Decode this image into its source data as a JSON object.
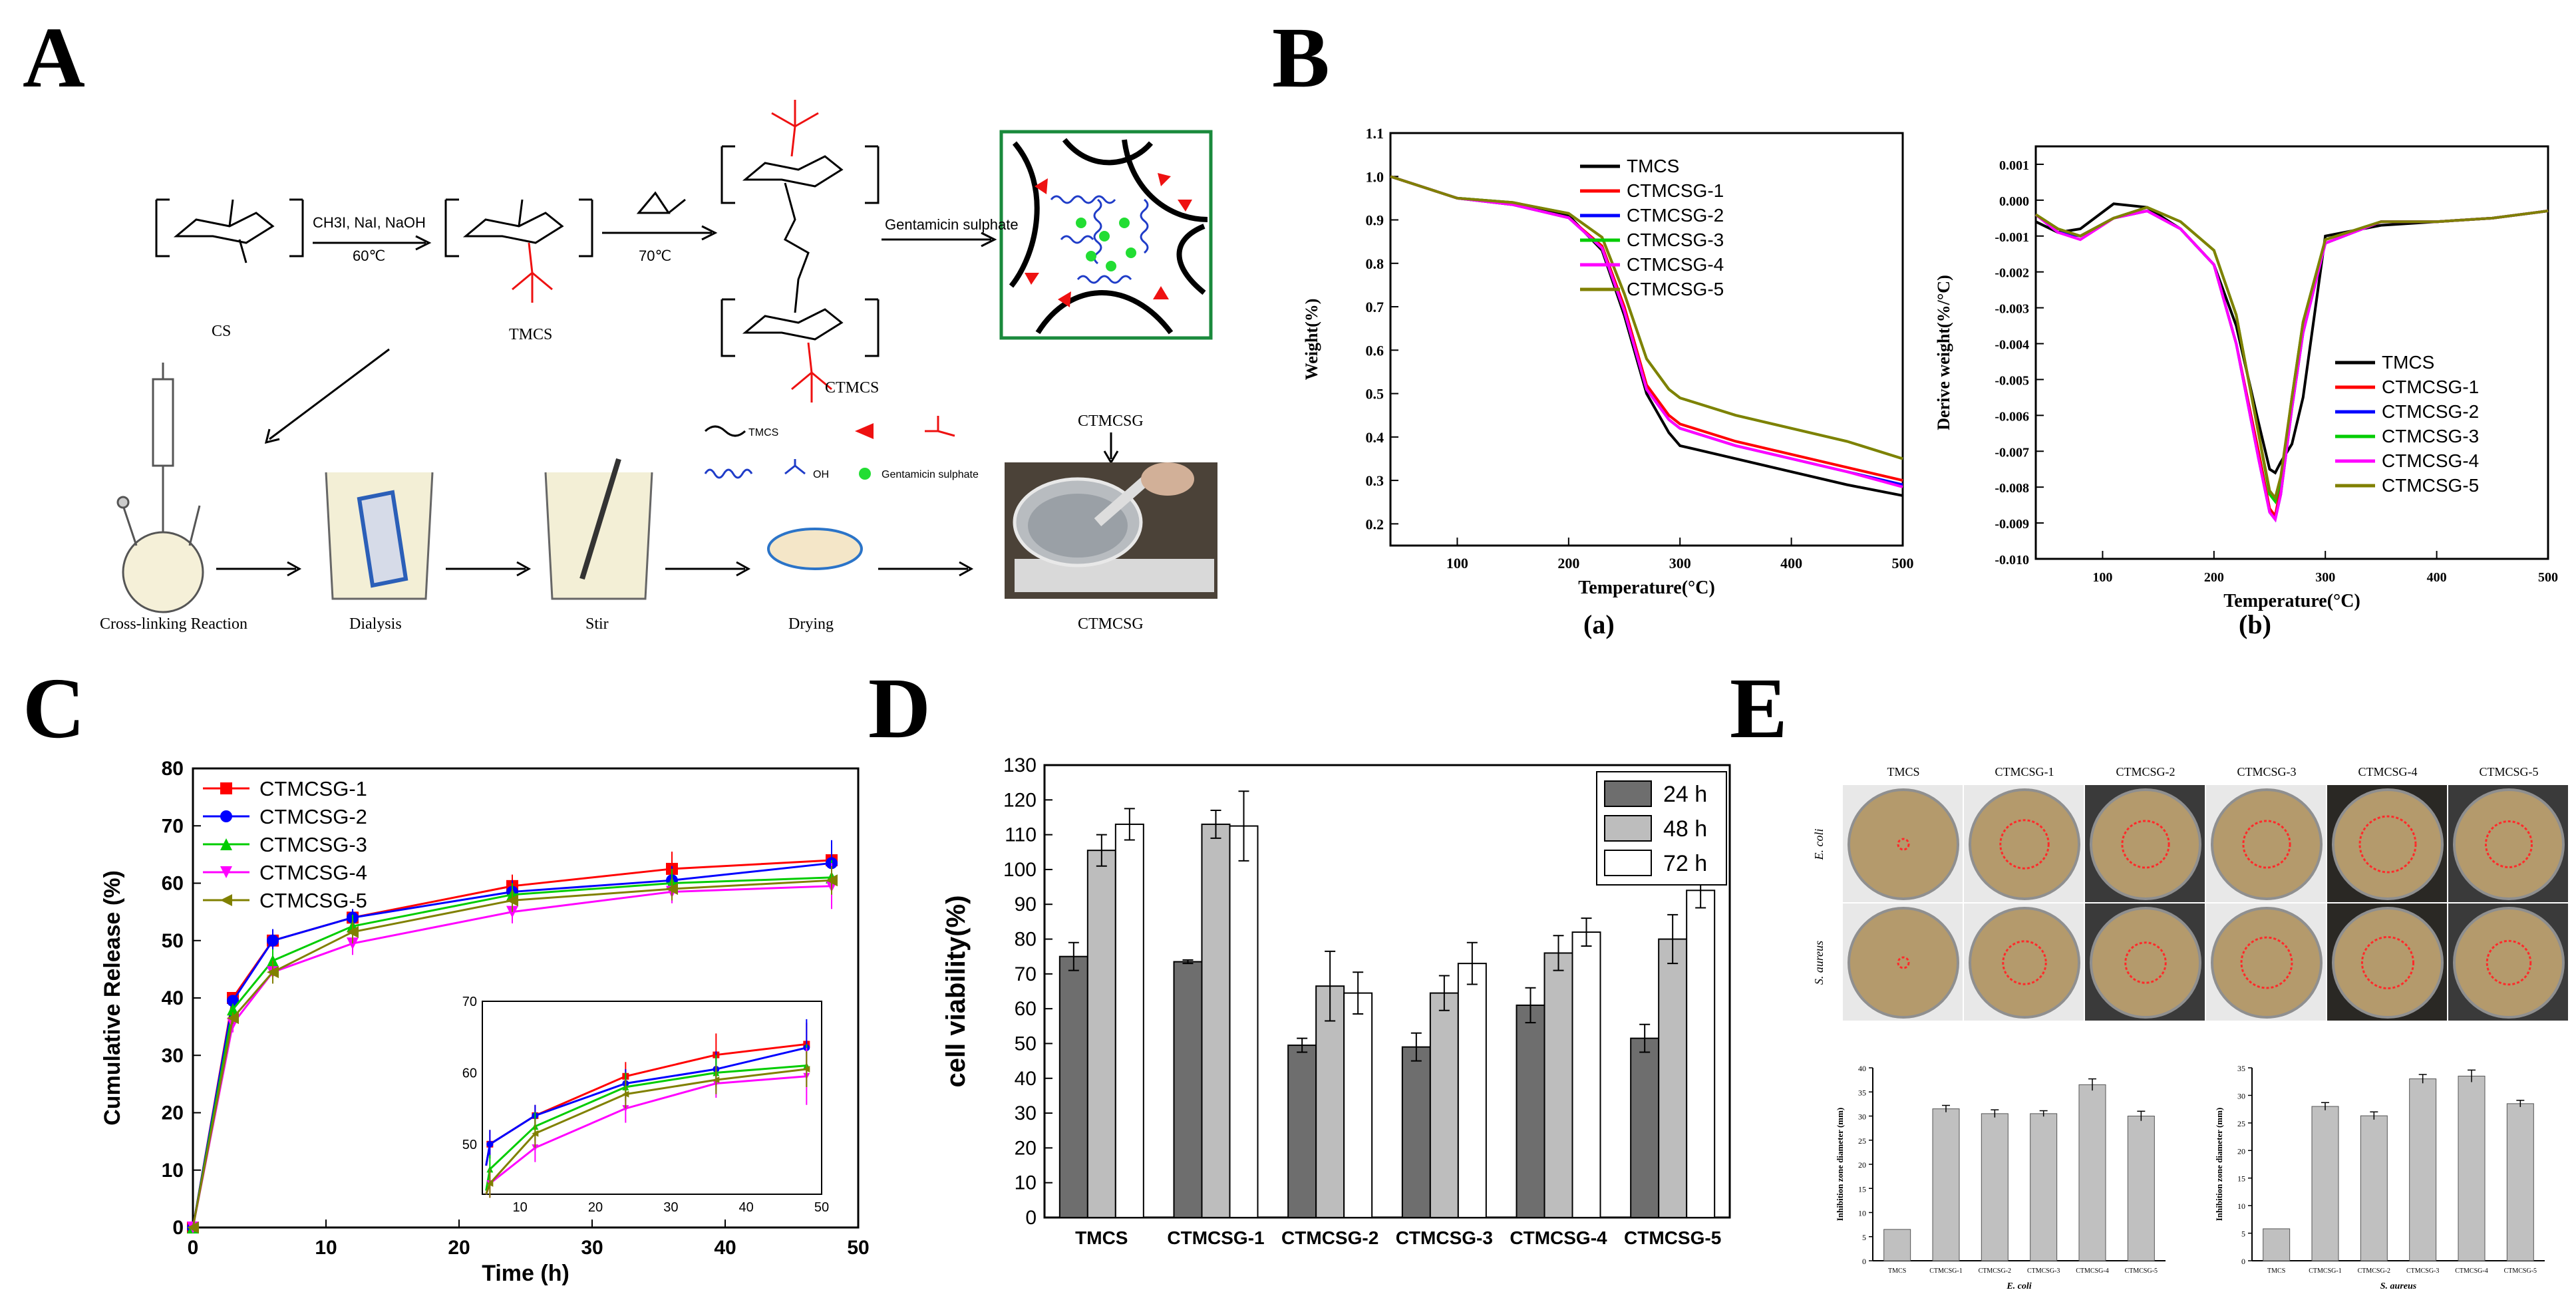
{
  "panels": {
    "A": "A",
    "B": "B",
    "C": "C",
    "D": "D",
    "E": "E"
  },
  "scheme": {
    "reagents1": "CH3I, NaI, NaOH",
    "temp1": "60℃",
    "temp2": "70℃",
    "gentamicin_arrow": "Gentamicin sulphate",
    "label_cs": "CS",
    "label_tmcs": "TMCS",
    "label_ctmcs": "CTMCS",
    "label_ctmcsg_top": "CTMCSG",
    "label_ctmcsg_bottom": "CTMCSG",
    "steps": [
      "Cross-linking Reaction",
      "Dialysis",
      "Stir",
      "Drying"
    ],
    "legend": {
      "tmcs": "TMCS",
      "gentamicin": "Gentamicin sulphate",
      "oh": "OH"
    }
  },
  "panelB": {
    "sub_a": "(a)",
    "sub_b": "(b)",
    "colors": {
      "TMCS": "#000000",
      "CTMCSG-1": "#ff0000",
      "CTMCSG-2": "#0000ff",
      "CTMCSG-3": "#00cc00",
      "CTMCSG-4": "#ff00ff",
      "CTMCSG-5": "#808000"
    }
  },
  "panelE": {
    "col_labels": [
      "TMCS",
      "CTMCSG-1",
      "CTMCSG-2",
      "CTMCSG-3",
      "CTMCSG-4",
      "CTMCSG-5"
    ],
    "row_labels": [
      "E. coli",
      "S. aureus"
    ]
  },
  "chart_data": [
    {
      "id": "B-a",
      "type": "line",
      "title": "",
      "xlabel": "Temperature(°C)",
      "ylabel": "Weight(%)",
      "xlim": [
        40,
        500
      ],
      "ylim": [
        0.15,
        1.1
      ],
      "xticks": [
        100,
        200,
        300,
        400,
        500
      ],
      "yticks": [
        0.2,
        0.3,
        0.4,
        0.5,
        0.6,
        0.7,
        0.8,
        0.9,
        1.0,
        1.1
      ],
      "x": [
        40,
        100,
        150,
        200,
        230,
        250,
        270,
        290,
        300,
        350,
        400,
        450,
        500
      ],
      "series": [
        {
          "name": "TMCS",
          "values": [
            1.0,
            0.95,
            0.94,
            0.91,
            0.83,
            0.68,
            0.5,
            0.41,
            0.38,
            0.35,
            0.32,
            0.29,
            0.265
          ]
        },
        {
          "name": "CTMCSG-1",
          "values": [
            1.0,
            0.95,
            0.935,
            0.905,
            0.84,
            0.7,
            0.52,
            0.45,
            0.43,
            0.39,
            0.36,
            0.33,
            0.3
          ]
        },
        {
          "name": "CTMCSG-2",
          "values": [
            1.0,
            0.95,
            0.935,
            0.905,
            0.835,
            0.69,
            0.51,
            0.44,
            0.42,
            0.38,
            0.35,
            0.32,
            0.29
          ]
        },
        {
          "name": "CTMCSG-3",
          "values": [
            1.0,
            0.95,
            0.94,
            0.915,
            0.86,
            0.73,
            0.58,
            0.51,
            0.49,
            0.45,
            0.42,
            0.39,
            0.35
          ]
        },
        {
          "name": "CTMCSG-4",
          "values": [
            1.0,
            0.95,
            0.935,
            0.905,
            0.835,
            0.69,
            0.51,
            0.44,
            0.42,
            0.38,
            0.35,
            0.32,
            0.285
          ]
        },
        {
          "name": "CTMCSG-5",
          "values": [
            1.0,
            0.95,
            0.94,
            0.915,
            0.86,
            0.73,
            0.58,
            0.51,
            0.49,
            0.45,
            0.42,
            0.39,
            0.35
          ]
        }
      ],
      "legend": "top-right"
    },
    {
      "id": "B-b",
      "type": "line",
      "title": "",
      "xlabel": "Temperature(°C)",
      "ylabel": "Derive weight(%/°C)",
      "xlim": [
        40,
        500
      ],
      "ylim": [
        -0.01,
        0.0015
      ],
      "xticks": [
        100,
        200,
        300,
        400,
        500
      ],
      "yticks": [
        -0.01,
        -0.009,
        -0.008,
        -0.007,
        -0.006,
        -0.005,
        -0.004,
        -0.003,
        -0.002,
        -0.001,
        0.0,
        0.001
      ],
      "x": [
        40,
        60,
        80,
        110,
        140,
        170,
        200,
        220,
        240,
        250,
        255,
        260,
        270,
        280,
        300,
        350,
        400,
        450,
        500
      ],
      "series": [
        {
          "name": "TMCS",
          "values": [
            -0.0006,
            -0.0009,
            -0.0008,
            -0.0001,
            -0.0002,
            -0.0008,
            -0.0018,
            -0.0035,
            -0.0062,
            -0.0075,
            -0.0076,
            -0.0073,
            -0.0068,
            -0.0055,
            -0.001,
            -0.0007,
            -0.0006,
            -0.0005,
            -0.0003
          ]
        },
        {
          "name": "CTMCSG-1",
          "values": [
            -0.0004,
            -0.0009,
            -0.001,
            -0.0005,
            -0.0003,
            -0.0008,
            -0.0018,
            -0.004,
            -0.007,
            -0.0086,
            -0.0088,
            -0.008,
            -0.0055,
            -0.0035,
            -0.0012,
            -0.0006,
            -0.0006,
            -0.0005,
            -0.0003
          ]
        },
        {
          "name": "CTMCSG-2",
          "values": [
            -0.0004,
            -0.0009,
            -0.001,
            -0.0005,
            -0.0003,
            -0.0008,
            -0.0018,
            -0.004,
            -0.0072,
            -0.0087,
            -0.0089,
            -0.0082,
            -0.0058,
            -0.0037,
            -0.0012,
            -0.0006,
            -0.0006,
            -0.0005,
            -0.0003
          ]
        },
        {
          "name": "CTMCSG-3",
          "values": [
            -0.0004,
            -0.0008,
            -0.001,
            -0.0005,
            -0.0002,
            -0.0006,
            -0.0014,
            -0.0032,
            -0.0065,
            -0.0082,
            -0.0084,
            -0.0078,
            -0.0055,
            -0.0034,
            -0.0011,
            -0.0006,
            -0.0006,
            -0.0005,
            -0.0003
          ]
        },
        {
          "name": "CTMCSG-4",
          "values": [
            -0.0004,
            -0.0009,
            -0.0011,
            -0.0005,
            -0.0003,
            -0.0008,
            -0.0018,
            -0.004,
            -0.0072,
            -0.0087,
            -0.0089,
            -0.0082,
            -0.0058,
            -0.0037,
            -0.0012,
            -0.0006,
            -0.0006,
            -0.0005,
            -0.0003
          ]
        },
        {
          "name": "CTMCSG-5",
          "values": [
            -0.0004,
            -0.0008,
            -0.001,
            -0.0005,
            -0.0002,
            -0.0006,
            -0.0014,
            -0.0032,
            -0.0065,
            -0.0081,
            -0.0083,
            -0.0077,
            -0.0055,
            -0.0034,
            -0.0011,
            -0.0006,
            -0.0006,
            -0.0005,
            -0.0003
          ]
        }
      ],
      "legend": "bottom-right"
    },
    {
      "id": "C",
      "type": "line",
      "title": "",
      "xlabel": "Time (h)",
      "ylabel": "Cumulative Release (%)",
      "xlim": [
        0,
        50
      ],
      "ylim": [
        0,
        80
      ],
      "xticks": [
        0,
        10,
        20,
        30,
        40,
        50
      ],
      "yticks": [
        0,
        10,
        20,
        30,
        40,
        50,
        60,
        70,
        80
      ],
      "x": [
        0,
        3,
        6,
        12,
        24,
        36,
        48
      ],
      "series": [
        {
          "name": "CTMCSG-1",
          "color": "#ff0000",
          "marker": "square",
          "values": [
            0,
            40,
            50,
            54,
            59.5,
            62.5,
            64
          ],
          "err": [
            0,
            1,
            2,
            1.5,
            2,
            3,
            3
          ]
        },
        {
          "name": "CTMCSG-2",
          "color": "#0000ff",
          "marker": "circle",
          "values": [
            0,
            39.5,
            50,
            54,
            58.5,
            60.5,
            63.5
          ],
          "err": [
            0,
            1,
            2,
            1.5,
            2,
            2.5,
            4
          ]
        },
        {
          "name": "CTMCSG-3",
          "color": "#00cc00",
          "marker": "triangle-up",
          "values": [
            0,
            38,
            46.5,
            52.5,
            58,
            60,
            61
          ],
          "err": [
            0,
            1,
            2,
            2,
            2,
            2.5,
            3
          ]
        },
        {
          "name": "CTMCSG-4",
          "color": "#ff00ff",
          "marker": "triangle-down",
          "values": [
            0,
            35.5,
            44.5,
            49.5,
            55,
            58.5,
            59.5
          ],
          "err": [
            0,
            1.5,
            2,
            2,
            2,
            2,
            4
          ]
        },
        {
          "name": "CTMCSG-5",
          "color": "#808000",
          "marker": "triangle-left",
          "values": [
            0,
            36.5,
            44.5,
            51.5,
            57,
            59,
            60.5
          ],
          "err": [
            0,
            1,
            2,
            2,
            2,
            2,
            2.5
          ]
        }
      ],
      "inset": {
        "xlim": [
          5,
          50
        ],
        "ylim": [
          43,
          70
        ],
        "xticks": [
          10,
          20,
          30,
          40,
          50
        ],
        "yticks": [
          50,
          60,
          70
        ]
      },
      "legend": "top-left"
    },
    {
      "id": "D",
      "type": "bar",
      "title": "",
      "xlabel": "",
      "ylabel": "cell viability(%)",
      "ylim": [
        0,
        130
      ],
      "yticks": [
        0,
        10,
        20,
        30,
        40,
        50,
        60,
        70,
        80,
        90,
        100,
        110,
        120,
        130
      ],
      "categories": [
        "TMCS",
        "CTMCSG-1",
        "CTMCSG-2",
        "CTMCSG-3",
        "CTMCSG-4",
        "CTMCSG-5"
      ],
      "series": [
        {
          "name": "24 h",
          "color": "#6e6e6e",
          "values": [
            75,
            73.5,
            49.5,
            49,
            61,
            51.5
          ],
          "err": [
            4,
            0.5,
            2,
            4,
            5,
            4
          ]
        },
        {
          "name": "48 h",
          "color": "#bdbdbd",
          "values": [
            105.5,
            113,
            66.5,
            64.5,
            76,
            80
          ],
          "err": [
            4.5,
            4,
            10,
            5,
            5,
            7
          ]
        },
        {
          "name": "72 h",
          "color": "#ffffff",
          "values": [
            113,
            112.5,
            64.5,
            73,
            82,
            94
          ],
          "err": [
            4.5,
            10,
            6,
            6,
            4,
            5
          ]
        }
      ],
      "legend": "top-right"
    },
    {
      "id": "E-ecoli",
      "type": "bar",
      "title": "",
      "xlabel": "E. coli",
      "ylabel": "Inhibition zone diameter (mm)",
      "ylim": [
        0,
        40
      ],
      "yticks": [
        0,
        5,
        10,
        15,
        20,
        25,
        30,
        35,
        40
      ],
      "categories": [
        "TMCS",
        "CTMCSG-1",
        "CTMCSG-2",
        "CTMCSG-3",
        "CTMCSG-4",
        "CTMCSG-5"
      ],
      "values": [
        6.5,
        31.5,
        30.5,
        30.5,
        36.5,
        30
      ],
      "err": [
        0,
        0.7,
        0.8,
        0.6,
        1.2,
        1
      ]
    },
    {
      "id": "E-saureus",
      "type": "bar",
      "title": "",
      "xlabel": "S. aureus",
      "ylabel": "Inhibition zone diameter (mm)",
      "ylim": [
        0,
        35
      ],
      "yticks": [
        0,
        5,
        10,
        15,
        20,
        25,
        30,
        35
      ],
      "categories": [
        "TMCS",
        "CTMCSG-1",
        "CTMCSG-2",
        "CTMCSG-3",
        "CTMCSG-4",
        "CTMCSG-5"
      ],
      "values": [
        5.8,
        28,
        26.3,
        33,
        33.5,
        28.5
      ],
      "err": [
        0,
        0.7,
        0.7,
        0.8,
        1.1,
        0.6
      ]
    }
  ]
}
